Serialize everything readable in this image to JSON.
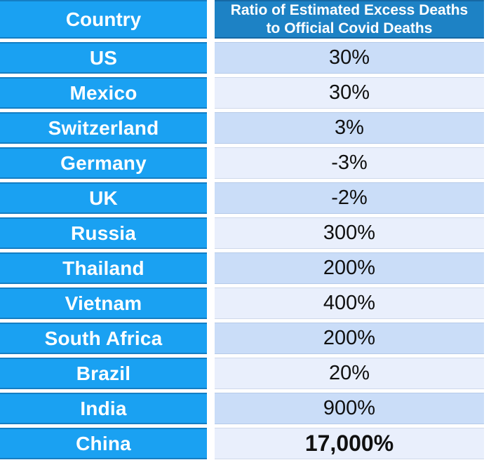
{
  "table": {
    "header": {
      "country": "Country",
      "ratio": "Ratio of Estimated Excess Deaths to Official Covid Deaths"
    },
    "rows": [
      {
        "country": "US",
        "ratio": "30%"
      },
      {
        "country": "Mexico",
        "ratio": "30%"
      },
      {
        "country": "Switzerland",
        "ratio": "3%"
      },
      {
        "country": "Germany",
        "ratio": "-3%"
      },
      {
        "country": "UK",
        "ratio": "-2%"
      },
      {
        "country": "Russia",
        "ratio": "300%"
      },
      {
        "country": "Thailand",
        "ratio": "200%"
      },
      {
        "country": "Vietnam",
        "ratio": "400%"
      },
      {
        "country": "South Africa",
        "ratio": "200%"
      },
      {
        "country": "Brazil",
        "ratio": "20%"
      },
      {
        "country": "India",
        "ratio": "900%"
      },
      {
        "country": "China",
        "ratio": "17,000%",
        "emphasis": true
      }
    ]
  },
  "colors": {
    "column_blue": "#1aa1f2",
    "header_blue": "#1d82c5",
    "row_tint_dark": "#caddf8",
    "row_tint_light": "#e9effc",
    "value_text": "#101010",
    "header_text": "#ffffff"
  },
  "chart_data": {
    "type": "table",
    "title": "Ratio of Estimated Excess Deaths to Official Covid Deaths",
    "columns": [
      "Country",
      "Ratio of Estimated Excess Deaths to Official Covid Deaths"
    ],
    "categories": [
      "US",
      "Mexico",
      "Switzerland",
      "Germany",
      "UK",
      "Russia",
      "Thailand",
      "Vietnam",
      "South Africa",
      "Brazil",
      "India",
      "China"
    ],
    "values_percent": [
      30,
      30,
      3,
      -3,
      -2,
      300,
      200,
      400,
      200,
      20,
      900,
      17000
    ],
    "notes": "Left column cells solid bright blue with white bold labels; value cells alternate light-blue tints; China value emphasized in bold"
  }
}
